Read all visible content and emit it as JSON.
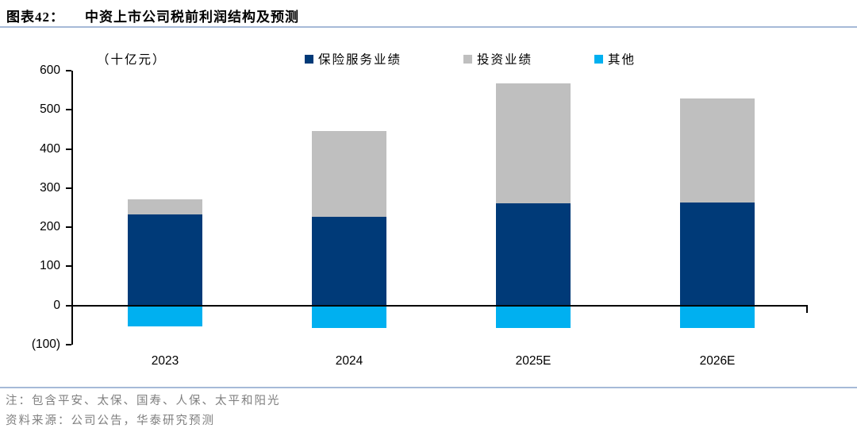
{
  "header": {
    "label": "图表42：",
    "title": "中资上市公司税前利润结构及预测"
  },
  "chart_data": {
    "type": "bar",
    "stacked": true,
    "title": "中资上市公司税前利润结构及预测",
    "unit_label": "（十亿元）",
    "categories": [
      "2023",
      "2024",
      "2025E",
      "2026E"
    ],
    "series": [
      {
        "name": "保险服务业绩",
        "color": "#003a78",
        "values": [
          233,
          227,
          261,
          263
        ]
      },
      {
        "name": "投资业绩",
        "color": "#bfbfbf",
        "values": [
          38,
          218,
          306,
          267
        ]
      },
      {
        "name": "其他",
        "color": "#00b0f0",
        "values": [
          -53,
          -57,
          -57,
          -57
        ]
      }
    ],
    "ylim": [
      -100,
      600
    ],
    "ytick_step": 100,
    "ytick_labels": [
      "(100)",
      "0",
      "100",
      "200",
      "300",
      "400",
      "500",
      "600"
    ],
    "legend_position": "top",
    "grid": false
  },
  "footer": {
    "note": "注：包含平安、太保、国寿、人保、太平和阳光",
    "source": "资料来源：公司公告，华泰研究预测"
  },
  "colors": {
    "rule_accent": "#a6bad8",
    "axis": "#000000",
    "footnote_gray": "#7f7f7f"
  }
}
